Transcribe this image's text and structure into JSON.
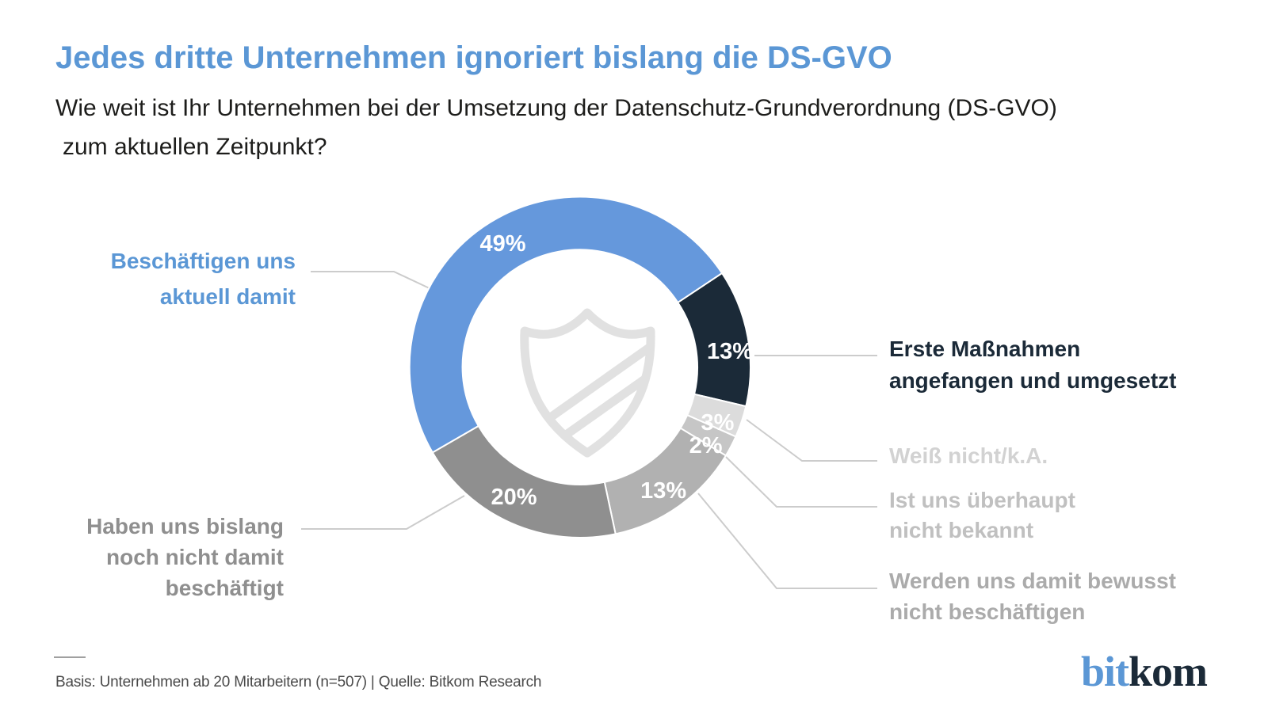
{
  "header": {
    "title": "Jedes dritte Unternehmen ignoriert bislang die DS-GVO",
    "title_color": "#5b97d5",
    "subtitle_line1": "Wie weit ist Ihr Unternehmen bei der Umsetzung der Datenschutz-Grundverordnung (DS-GVO)",
    "subtitle_line2": "zum aktuellen Zeitpunkt?"
  },
  "chart_data": {
    "type": "pie",
    "variant": "donut",
    "title": "",
    "unit": "%",
    "start_angle_deg": 240,
    "clockwise": true,
    "center": [
      732,
      464
    ],
    "outer_radius": 215,
    "inner_radius": 148,
    "separator_color": "#ffffff",
    "center_icon": "shield-icon",
    "center_icon_color": "#e1e1e1",
    "value_label_format": "{value}%",
    "segments": [
      {
        "label": "Beschäftigen uns aktuell damit",
        "value": 49,
        "color": "#6598dc",
        "label_angle_deg": 328,
        "label_radius": 184
      },
      {
        "label": "Erste Maßnahmen angefangen und umgesetzt",
        "value": 13,
        "color": "#1b2a38",
        "label_angle_deg": 84,
        "label_radius": 190
      },
      {
        "label": "Weiß nicht/k.A.",
        "value": 3,
        "color": "#dcdcdc",
        "label_angle_deg": 112,
        "label_radius": 187
      },
      {
        "label": "Ist uns überhaupt nicht bekannt",
        "value": 2,
        "color": "#c6c6c6",
        "label_angle_deg": 122,
        "label_radius": 187
      },
      {
        "label": "Werden uns damit bewusst nicht beschäftigen",
        "value": 13,
        "color": "#b1b1b1",
        "label_angle_deg": 146,
        "label_radius": 188
      },
      {
        "label": "Haben uns bislang noch nicht damit beschäftigt",
        "value": 20,
        "color": "#8f8f8f",
        "label_angle_deg": 207,
        "label_radius": 184
      }
    ],
    "legend_position": "callout-labels"
  },
  "callouts": {
    "blue": {
      "line1": "Beschäftigen uns",
      "line2": "aktuell damit",
      "color": "#5b97d5"
    },
    "erste": {
      "line1": "Erste Maßnahmen",
      "line2": "angefangen und umgesetzt",
      "color": "#1b2a38"
    },
    "weiss": {
      "line1": "Weiß nicht/k.A.",
      "color": "#d2d2d2"
    },
    "ist": {
      "line1": "Ist uns überhaupt",
      "line2": "nicht bekannt",
      "color": "#c0c0c0"
    },
    "werden": {
      "line1": "Werden uns damit bewusst",
      "line2": "nicht beschäftigen",
      "color": "#ababab"
    },
    "haben": {
      "line1": "Haben uns bislang",
      "line2": "noch nicht damit",
      "line3": "beschäftigt",
      "color": "#8f8f8f"
    }
  },
  "footer": {
    "basis": "Basis: Unternehmen ab 20 Mitarbeitern (n=507) | Quelle: Bitkom Research"
  },
  "logo": {
    "part1": "bit",
    "part2": "kom",
    "part1_color": "#5b97d5",
    "part2_color": "#1b2a38"
  }
}
